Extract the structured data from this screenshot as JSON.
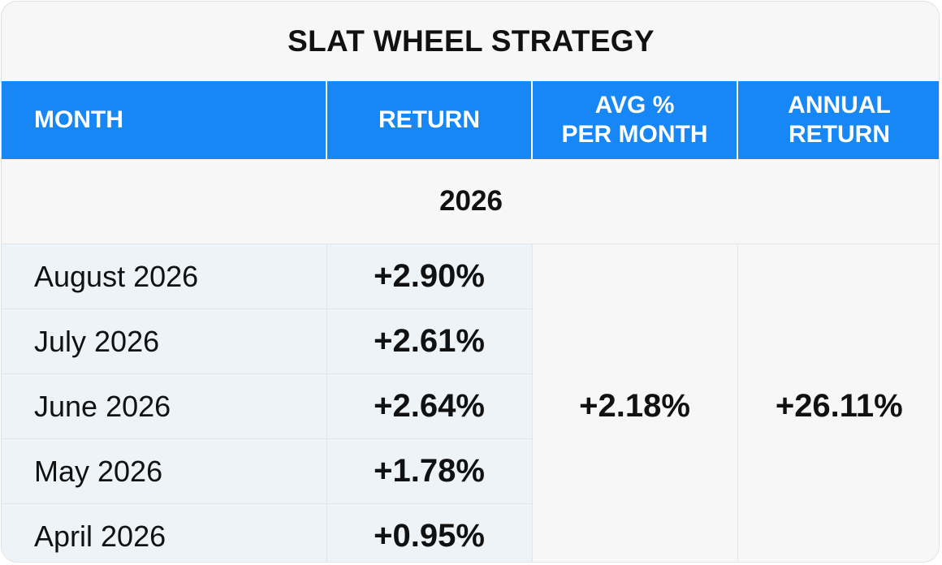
{
  "title": "SLAT WHEEL STRATEGY",
  "headers": {
    "month": "MONTH",
    "return": "RETURN",
    "avg_line1": "AVG %",
    "avg_line2": "PER MONTH",
    "annual_line1": "ANNUAL",
    "annual_line2": "RETURN"
  },
  "year": "2026",
  "rows": [
    {
      "month": "August 2026",
      "return": "+2.90%"
    },
    {
      "month": "July 2026",
      "return": "+2.61%"
    },
    {
      "month": "June 2026",
      "return": "+2.64%"
    },
    {
      "month": "May 2026",
      "return": "+1.78%"
    },
    {
      "month": "April 2026",
      "return": "+0.95%"
    }
  ],
  "avg_per_month": "+2.18%",
  "annual_return": "+26.11%",
  "colors": {
    "header_bg": "#1787f5",
    "header_text": "#ffffff",
    "row_bg": "#eef3f8",
    "card_bg": "#f7f7f7"
  }
}
